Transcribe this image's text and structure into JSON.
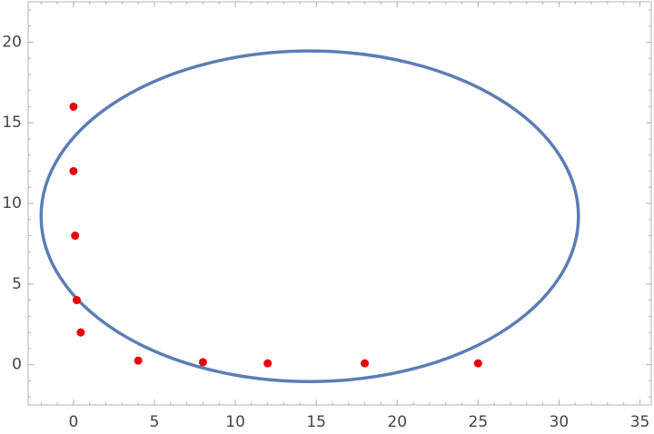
{
  "chart_data": {
    "type": "scatter",
    "x": [
      0,
      0,
      0.1,
      0.2,
      0.45,
      4,
      8,
      12,
      18,
      25
    ],
    "series": [
      {
        "color": "#e8000b",
        "values": [
          16,
          12,
          8,
          4,
          2,
          0.25,
          0.15,
          0.08,
          0.08,
          0.08
        ]
      }
    ],
    "ellipse": {
      "center": [
        14.6,
        9.2
      ],
      "radii": [
        16.6,
        10.25
      ],
      "color": "#5b7db5"
    },
    "xlim": [
      -2.8,
      35.7
    ],
    "ylim": [
      -2.5,
      22.5
    ],
    "xticks": [
      0,
      5,
      10,
      15,
      20,
      25,
      30,
      35
    ],
    "yticks": [
      0,
      5,
      10,
      15,
      20
    ],
    "frame_color": "#b3b3b3"
  }
}
